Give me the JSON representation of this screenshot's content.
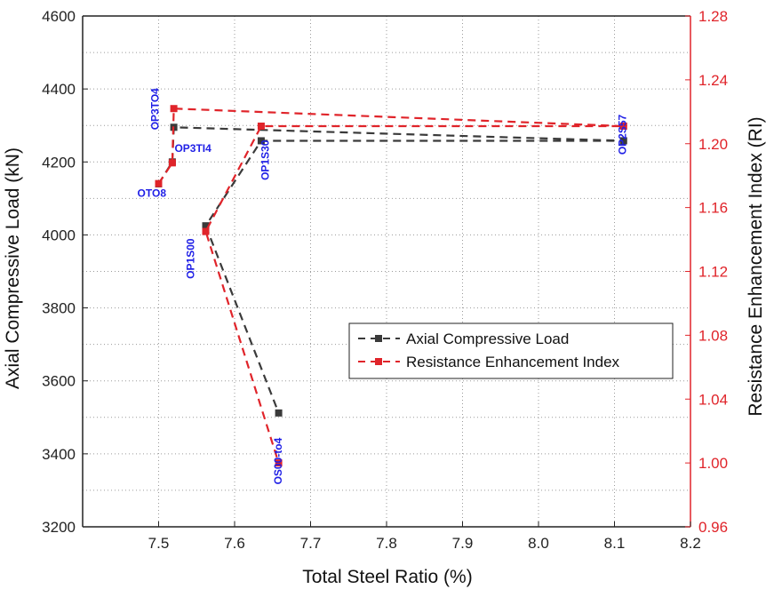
{
  "chart_data": {
    "type": "line",
    "xlabel": "Total Steel Ratio (%)",
    "ylabel_left": "Axial Compressive Load (kN)",
    "ylabel_right": "Resistance Enhancement Index (RI)",
    "xlim": [
      7.4,
      8.2
    ],
    "ylim_left": [
      3200,
      4600
    ],
    "ylim_right": [
      0.96,
      1.28
    ],
    "x_ticks": [
      "7.5",
      "7.6",
      "7.7",
      "7.8",
      "7.9",
      "8.0",
      "8.1",
      "8.2"
    ],
    "y_left_ticks": [
      "3200",
      "3400",
      "3600",
      "3800",
      "4000",
      "4200",
      "4400",
      "4600"
    ],
    "y_right_ticks": [
      "0.96",
      "1.00",
      "1.04",
      "1.08",
      "1.12",
      "1.16",
      "1.20",
      "1.24",
      "1.28"
    ],
    "grid": true,
    "legend_position": "center-right",
    "series": [
      {
        "name": "Axial Compressive Load",
        "axis": "left",
        "color": "#3a3a3a",
        "x": [
          7.5,
          7.518,
          7.52,
          7.562,
          7.635,
          8.112
        ],
        "y": [
          4140,
          4200,
          4295,
          4025,
          4258,
          4258
        ],
        "connect_order": [
          0,
          1,
          2,
          5,
          4,
          3
        ],
        "extra_segment": {
          "x": [
            7.562,
            7.658
          ],
          "y": [
            4025,
            3512
          ]
        }
      },
      {
        "name": "Resistance Enhancement Index",
        "axis": "right",
        "color": "#e0242a",
        "x": [
          7.5,
          7.518,
          7.52,
          7.562,
          7.635,
          8.112,
          7.658
        ],
        "y": [
          1.175,
          1.188,
          1.222,
          1.145,
          1.211,
          1.211,
          1.0
        ],
        "connect_order": [
          0,
          1,
          2,
          5,
          4,
          3,
          6
        ]
      }
    ],
    "annotations": [
      {
        "text": "OP3TO4",
        "x": 7.5,
        "y_left": 4345,
        "rotate": true
      },
      {
        "text": "OP3TI4",
        "x": 7.521,
        "y_left": 4228,
        "rotate": false
      },
      {
        "text": "OTO8",
        "x": 7.472,
        "y_left": 4105,
        "rotate": false
      },
      {
        "text": "OP1S30",
        "x": 7.645,
        "y_left": 4205,
        "rotate": true
      },
      {
        "text": "OP2S57",
        "x": 8.115,
        "y_left": 4275,
        "rotate": true
      },
      {
        "text": "OP1S00",
        "x": 7.547,
        "y_left": 3935,
        "rotate": true
      },
      {
        "text": "OS00-to4",
        "x": 7.662,
        "y_left": 3380,
        "rotate": true
      }
    ]
  }
}
